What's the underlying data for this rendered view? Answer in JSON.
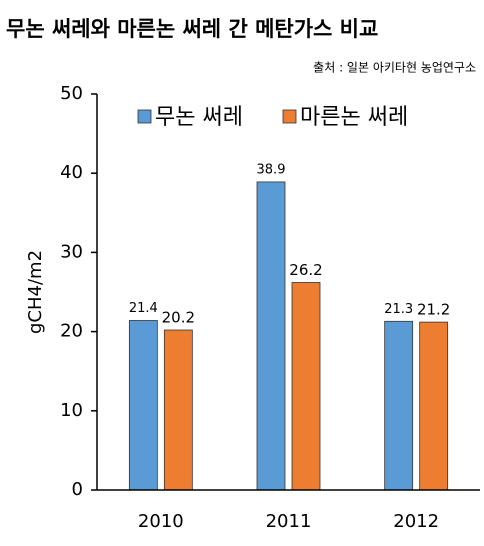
{
  "chart_data": {
    "type": "bar",
    "title": "무논 써레와 마른논 써레 간 메탄가스 비교",
    "subtitle": "출처 : 일본 아키타현 농업연구소",
    "y_label": "gCH4/m2",
    "categories": [
      "2010",
      "2011",
      "2012"
    ],
    "series": [
      {
        "name": "무논 써레",
        "color": "#5b9bd5",
        "values": [
          21.4,
          38.9,
          21.3
        ]
      },
      {
        "name": "마른논 써레",
        "color": "#ed7d31",
        "values": [
          20.2,
          26.2,
          21.2
        ]
      }
    ],
    "ylim": [
      0,
      50
    ],
    "yticks": [
      0,
      10,
      20,
      30,
      40,
      50
    ],
    "grid": false,
    "legend": "top-left"
  }
}
